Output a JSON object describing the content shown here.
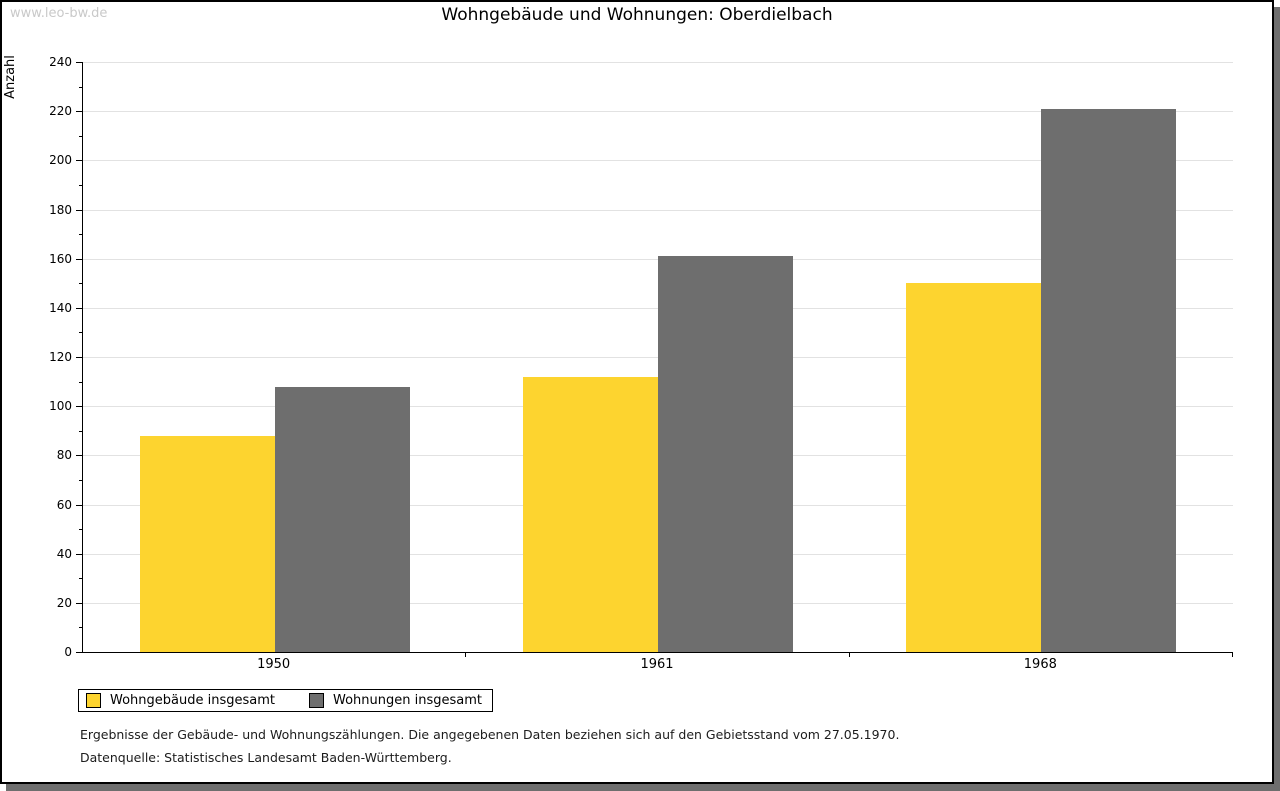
{
  "watermark": "www.leo-bw.de",
  "title": "Wohngebäude und Wohnungen: Oberdielbach",
  "chart_data": {
    "type": "bar",
    "title": "Wohngebäude und Wohnungen: Oberdielbach",
    "categories": [
      "1950",
      "1961",
      "1968"
    ],
    "series": [
      {
        "name": "Wohngebäude insgesamt",
        "color": "#fdd42f",
        "values": [
          88,
          112,
          150
        ]
      },
      {
        "name": "Wohnungen insgesamt",
        "color": "#6e6e6e",
        "values": [
          108,
          161,
          221
        ]
      }
    ],
    "ylabel": "Anzahl",
    "xlabel": "",
    "ylim": [
      0,
      240
    ],
    "ytick_step": 20,
    "yminor_step": 10,
    "grid": true,
    "legend_position": "bottom-left"
  },
  "footnotes": [
    "Ergebnisse der Gebäude- und Wohnungszählungen. Die angegebenen Daten beziehen sich auf den Gebietsstand vom 27.05.1970.",
    "Datenquelle: Statistisches Landesamt Baden-Württemberg."
  ],
  "colors": {
    "bar_yellow": "#fdd42f",
    "bar_gray": "#6e6e6e",
    "gridline": "#e2e2e2",
    "watermark": "#c9c9c9",
    "shadow": "#6e6e6e",
    "axis": "#000000"
  }
}
